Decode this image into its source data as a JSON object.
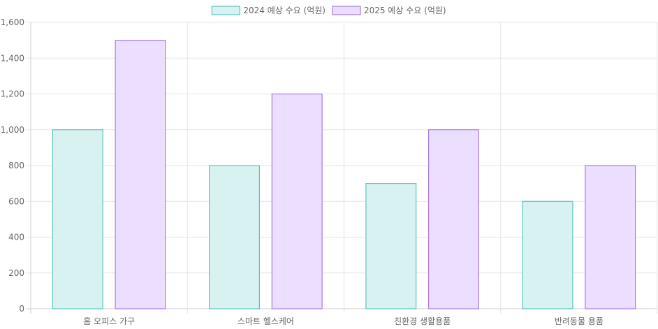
{
  "chart_data": {
    "type": "bar",
    "categories": [
      "홈 오피스 가구",
      "스마트 헬스케어",
      "친환경 생활용품",
      "반려동물 용품"
    ],
    "series": [
      {
        "name": "2024 예상 수요 (억원)",
        "values": [
          1000,
          800,
          700,
          600
        ],
        "fill": "#d8f2f2",
        "stroke": "#5cc4bd"
      },
      {
        "name": "2025 예상 수요 (억원)",
        "values": [
          1500,
          1200,
          1000,
          800
        ],
        "fill": "#ebdefe",
        "stroke": "#a97be9"
      }
    ],
    "y_ticks": [
      "0",
      "200",
      "400",
      "600",
      "800",
      "1,000",
      "1,200",
      "1,400",
      "1,600"
    ],
    "ylim": [
      0,
      1600
    ],
    "grid": true,
    "legend_position": "top"
  }
}
